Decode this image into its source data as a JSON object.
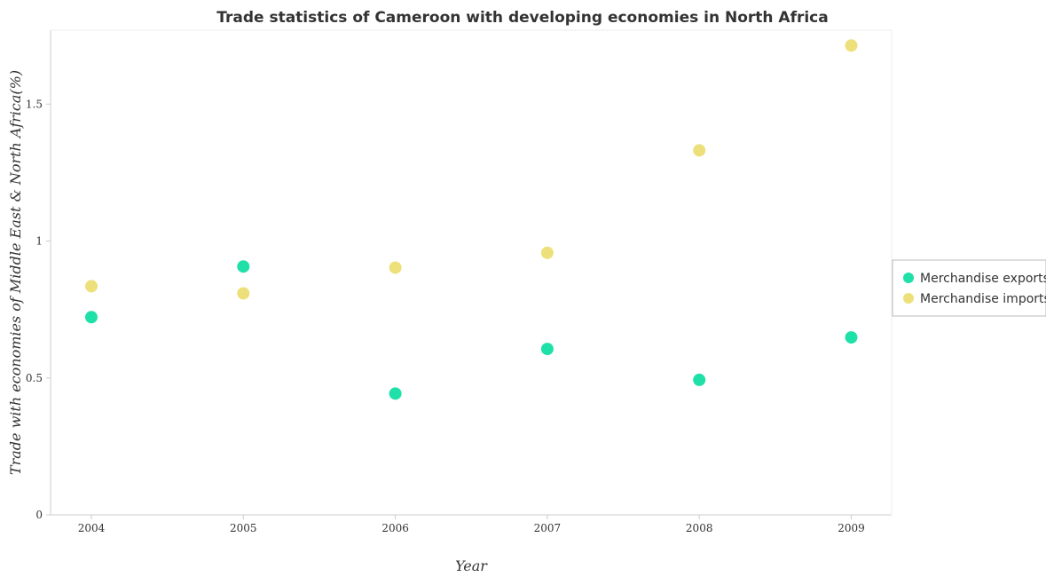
{
  "chart_data": {
    "type": "scatter",
    "title": "Trade statistics of Cameroon with developing economies in North Africa",
    "xlabel": "Year",
    "ylabel": "Trade with economies of Middle East & North Africa(%)",
    "categories": [
      "2004",
      "2005",
      "2006",
      "2007",
      "2008",
      "2009"
    ],
    "ylim": [
      0,
      1.77
    ],
    "yticks": [
      0,
      0.5,
      1,
      1.5
    ],
    "ytick_labels": [
      "0",
      "0.5",
      "1",
      "1.5"
    ],
    "grid": false,
    "legend_position": "right",
    "series": [
      {
        "name": "Merchandise exports",
        "color": "#1fe0a8",
        "values": [
          0.722,
          0.907,
          0.443,
          0.606,
          0.493,
          0.648
        ]
      },
      {
        "name": "Merchandise imports",
        "color": "#ede07a",
        "values": [
          0.835,
          0.809,
          0.903,
          0.957,
          1.331,
          1.714
        ]
      }
    ]
  }
}
